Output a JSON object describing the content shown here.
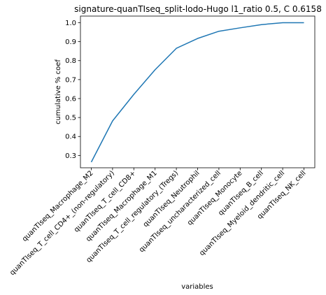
{
  "chart_data": {
    "type": "line",
    "title": "signature-quanTIseq_split-lodo-Hugo l1_ratio 0.5, C 0.6158",
    "xlabel": "variables",
    "ylabel": "cumulative % coef",
    "ylim": [
      0.235,
      1.035
    ],
    "yticks": [
      "0.3",
      "0.4",
      "0.5",
      "0.6",
      "0.7",
      "0.8",
      "0.9",
      "1.0"
    ],
    "grid": false,
    "line_color": "#1f77b4",
    "categories": [
      "quanTIseq_Macrophage_M2",
      "quanTIseq_T_cell_CD4+_(non-regulatory)",
      "quanTIseq_T_cell_CD8+",
      "quanTIseq_Macrophage_M1",
      "quanTIseq_T_cell_regulatory_(Tregs)",
      "quanTIseq_Neutrophil",
      "quanTIseq_uncharacterized_cell",
      "quanTIseq_Monocyte",
      "quanTIseq_B_cell",
      "quanTIseq_Myeloid_dendritic_cell",
      "quanTIseq_NK_cell"
    ],
    "values": [
      0.265,
      0.482,
      0.622,
      0.752,
      0.865,
      0.917,
      0.955,
      0.973,
      0.99,
      1.0,
      1.0
    ]
  }
}
